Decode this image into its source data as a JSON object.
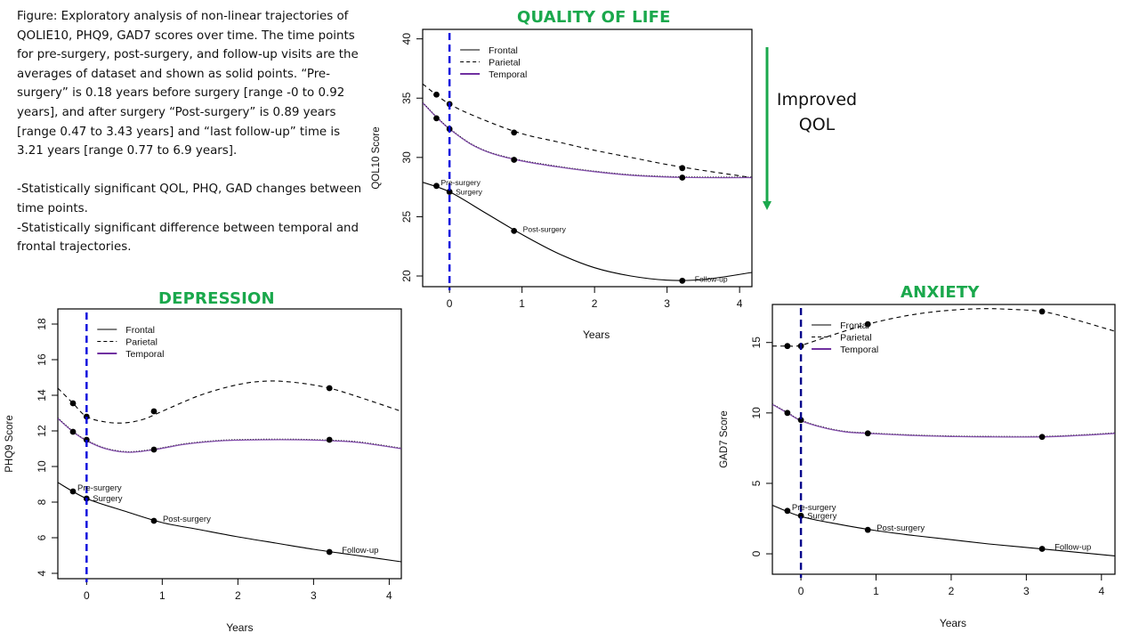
{
  "caption": {
    "paragraph1": "Figure:  Exploratory analysis of non-linear trajectories of QOLIE10, PHQ9, GAD7 scores over time.  The time points for pre-surgery, post-surgery, and follow-up visits are the averages of dataset and shown as solid points.  “Pre-surgery” is 0.18 years before surgery  [range -0 to 0.92 years], and after surgery “Post-surgery” is 0.89 years [range 0.47 to 3.43 years] and  “last follow-up” time is 3.21 years [range 0.77 to 6.9 years].",
    "bullet1": "-Statistically significant QOL, PHQ, GAD changes between time points.",
    "bullet2": "-Statistically significant difference between temporal and frontal trajectories."
  },
  "annotation": {
    "line1": "Improved",
    "line2": "QOL",
    "arrow_color": "#1aa84c"
  },
  "colors": {
    "title": "#1aa84c",
    "surgery_line": "#0000cc",
    "temporal": "#7030a0",
    "frontal": "#000000",
    "parietal": "#000000"
  },
  "chart_data": [
    {
      "id": "qol",
      "type": "line",
      "title": "QUALITY OF LIFE",
      "xlabel": "Years",
      "ylabel": "QOL10 Score",
      "xlim": [
        -0.37,
        4.17
      ],
      "ylim": [
        19.1,
        40.8
      ],
      "xticks": [
        0,
        1,
        2,
        3,
        4
      ],
      "yticks": [
        20,
        25,
        30,
        35,
        40
      ],
      "legend": [
        "Frontal",
        "Parietal",
        "Temporal"
      ],
      "legend_position": "top-left",
      "surgery_x": 0,
      "point_labels": [
        "Pre-surgery",
        "Surgery",
        "Post-surgery",
        "Follow-up"
      ],
      "point_labels_series": "Frontal",
      "series": [
        {
          "name": "Frontal",
          "style": "solid",
          "points": {
            "x": [
              -0.18,
              0,
              0.89,
              3.21
            ],
            "y": [
              27.6,
              27.1,
              23.8,
              19.6
            ]
          },
          "curve": {
            "x": [
              -0.37,
              0,
              0.5,
              1,
              1.5,
              2,
              2.5,
              3,
              3.5,
              4.17
            ],
            "y": [
              27.9,
              27.1,
              25.3,
              23.5,
              21.9,
              20.7,
              20.0,
              19.65,
              19.7,
              20.3
            ]
          }
        },
        {
          "name": "Parietal",
          "style": "dashed",
          "points": {
            "x": [
              -0.18,
              0,
              0.89,
              3.21
            ],
            "y": [
              35.3,
              34.5,
              32.1,
              29.1
            ]
          },
          "curve": {
            "x": [
              -0.37,
              0,
              0.5,
              1,
              1.5,
              2,
              2.5,
              3,
              3.5,
              4.17
            ],
            "y": [
              36.2,
              34.5,
              33.1,
              32.0,
              31.3,
              30.6,
              30.0,
              29.4,
              28.9,
              28.3
            ]
          }
        },
        {
          "name": "Temporal",
          "style": "solid-purple",
          "points": {
            "x": [
              -0.18,
              0,
              0.89,
              3.21
            ],
            "y": [
              33.3,
              32.4,
              29.8,
              28.3
            ]
          },
          "curve": {
            "x": [
              -0.37,
              -0.18,
              0,
              0.3,
              0.6,
              1,
              1.5,
              2,
              2.5,
              3,
              3.5,
              4.17
            ],
            "y": [
              34.6,
              33.4,
              32.4,
              31.1,
              30.3,
              29.7,
              29.2,
              28.8,
              28.5,
              28.35,
              28.3,
              28.3
            ]
          }
        }
      ]
    },
    {
      "id": "depression",
      "type": "line",
      "title": "DEPRESSION",
      "xlabel": "Years",
      "ylabel": "PHQ9 Score",
      "xlim": [
        -0.38,
        4.16
      ],
      "ylim": [
        3.7,
        18.85
      ],
      "xticks": [
        0,
        1,
        2,
        3,
        4
      ],
      "yticks": [
        4,
        6,
        8,
        10,
        12,
        14,
        16,
        18
      ],
      "legend": [
        "Frontal",
        "Parietal",
        "Temporal"
      ],
      "legend_position": "top-left",
      "surgery_x": 0,
      "point_labels": [
        "Pre-surgery",
        "Surgery",
        "Post-surgery",
        "Follow-up"
      ],
      "point_labels_series": "Frontal",
      "series": [
        {
          "name": "Frontal",
          "style": "solid",
          "points": {
            "x": [
              -0.18,
              0,
              0.89,
              3.21
            ],
            "y": [
              8.6,
              8.2,
              6.95,
              5.2
            ]
          },
          "curve": {
            "x": [
              -0.38,
              0,
              0.5,
              1,
              1.5,
              2,
              2.5,
              3,
              3.5,
              4.16
            ],
            "y": [
              9.1,
              8.2,
              7.5,
              6.85,
              6.45,
              6.05,
              5.7,
              5.35,
              5.05,
              4.65
            ]
          }
        },
        {
          "name": "Parietal",
          "style": "dashed",
          "points": {
            "x": [
              -0.18,
              0,
              0.89,
              3.21
            ],
            "y": [
              13.55,
              12.8,
              13.1,
              14.4
            ]
          },
          "curve": {
            "x": [
              -0.38,
              -0.18,
              0,
              0.25,
              0.5,
              0.75,
              1,
              1.5,
              2,
              2.4,
              2.8,
              3.21,
              3.6,
              4.16
            ],
            "y": [
              14.4,
              13.55,
              12.8,
              12.5,
              12.45,
              12.65,
              13.1,
              14.0,
              14.6,
              14.8,
              14.7,
              14.4,
              13.9,
              13.1
            ]
          }
        },
        {
          "name": "Temporal",
          "style": "solid-purple",
          "points": {
            "x": [
              -0.18,
              0,
              0.89,
              3.21
            ],
            "y": [
              11.95,
              11.5,
              10.95,
              11.5
            ]
          },
          "curve": {
            "x": [
              -0.38,
              -0.18,
              0,
              0.25,
              0.55,
              0.9,
              1.3,
              1.8,
              2.3,
              2.8,
              3.21,
              3.6,
              4.16
            ],
            "y": [
              12.7,
              11.95,
              11.45,
              11.0,
              10.8,
              10.95,
              11.25,
              11.45,
              11.5,
              11.5,
              11.45,
              11.35,
              11.0
            ]
          }
        }
      ]
    },
    {
      "id": "anxiety",
      "type": "line",
      "title": "ANXIETY",
      "xlabel": "Years",
      "ylabel": "GAD7 Score",
      "xlim": [
        -0.38,
        4.18
      ],
      "ylim": [
        -1.45,
        17.7
      ],
      "xticks": [
        0,
        1,
        2,
        3,
        4
      ],
      "yticks": [
        0,
        5,
        10,
        15
      ],
      "legend": [
        "Frontal",
        "Parietal",
        "Temporal"
      ],
      "legend_position": "top-left",
      "surgery_x": 0,
      "point_labels": [
        "Pre-surgery",
        "Surgery",
        "Post-surgery",
        "Follow-up"
      ],
      "point_labels_series": "Frontal",
      "series": [
        {
          "name": "Frontal",
          "style": "solid",
          "points": {
            "x": [
              -0.18,
              0,
              0.89,
              3.21
            ],
            "y": [
              3.05,
              2.7,
              1.7,
              0.35
            ]
          },
          "curve": {
            "x": [
              -0.38,
              0,
              0.5,
              1,
              1.5,
              2,
              2.5,
              3,
              3.5,
              4.18
            ],
            "y": [
              3.45,
              2.65,
              2.1,
              1.65,
              1.3,
              1.0,
              0.7,
              0.45,
              0.2,
              -0.15
            ]
          }
        },
        {
          "name": "Parietal",
          "style": "dashed",
          "points": {
            "x": [
              -0.18,
              0,
              0.89,
              3.21
            ],
            "y": [
              14.75,
              14.75,
              16.3,
              17.2
            ]
          },
          "curve": {
            "x": [
              -0.38,
              -0.18,
              0,
              0.4,
              0.89,
              1.4,
              1.9,
              2.4,
              2.8,
              3.21,
              3.6,
              4.18
            ],
            "y": [
              14.75,
              14.75,
              14.8,
              15.5,
              16.3,
              16.9,
              17.25,
              17.4,
              17.35,
              17.2,
              16.7,
              15.8
            ]
          }
        },
        {
          "name": "Temporal",
          "style": "solid-purple",
          "points": {
            "x": [
              -0.18,
              0,
              0.89,
              3.21
            ],
            "y": [
              10.0,
              9.5,
              8.55,
              8.3
            ]
          },
          "curve": {
            "x": [
              -0.38,
              -0.18,
              0,
              0.3,
              0.6,
              0.89,
              1.5,
              2,
              2.5,
              3.21,
              3.7,
              4.18
            ],
            "y": [
              10.6,
              10.0,
              9.45,
              8.95,
              8.65,
              8.55,
              8.4,
              8.33,
              8.3,
              8.3,
              8.4,
              8.55
            ]
          }
        }
      ]
    }
  ]
}
